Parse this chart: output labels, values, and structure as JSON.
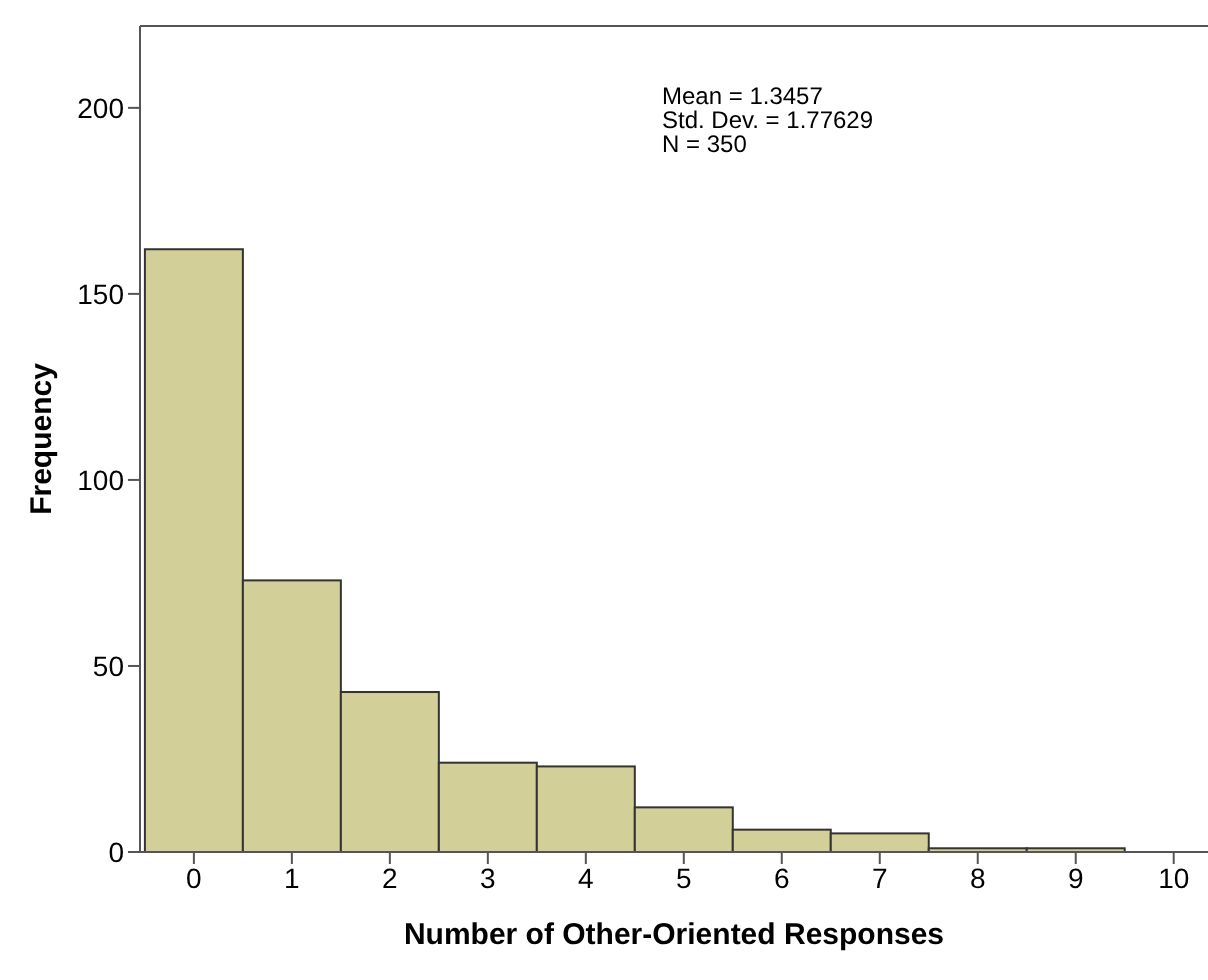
{
  "chart_data": {
    "type": "histogram",
    "xlabel": "Number of Other-Oriented Responses",
    "ylabel": "Frequency",
    "bins": [
      -0.5,
      0.5,
      1.5,
      2.5,
      3.5,
      4.5,
      5.5,
      6.5,
      7.5,
      8.5,
      9.5
    ],
    "values": [
      162,
      73,
      43,
      24,
      23,
      12,
      6,
      5,
      1,
      1
    ],
    "color": "#d3cf98",
    "xlim": [
      -0.55,
      10.35
    ],
    "xticks": [
      0,
      1,
      2,
      3,
      4,
      5,
      6,
      7,
      8,
      9,
      10
    ],
    "ylim": [
      0,
      222
    ],
    "yticks": [
      0,
      50,
      100,
      150,
      200
    ],
    "grid": false,
    "annotations": [
      "Mean = 1.3457",
      "Std. Dev. = 1.77629",
      "N = 350"
    ]
  }
}
